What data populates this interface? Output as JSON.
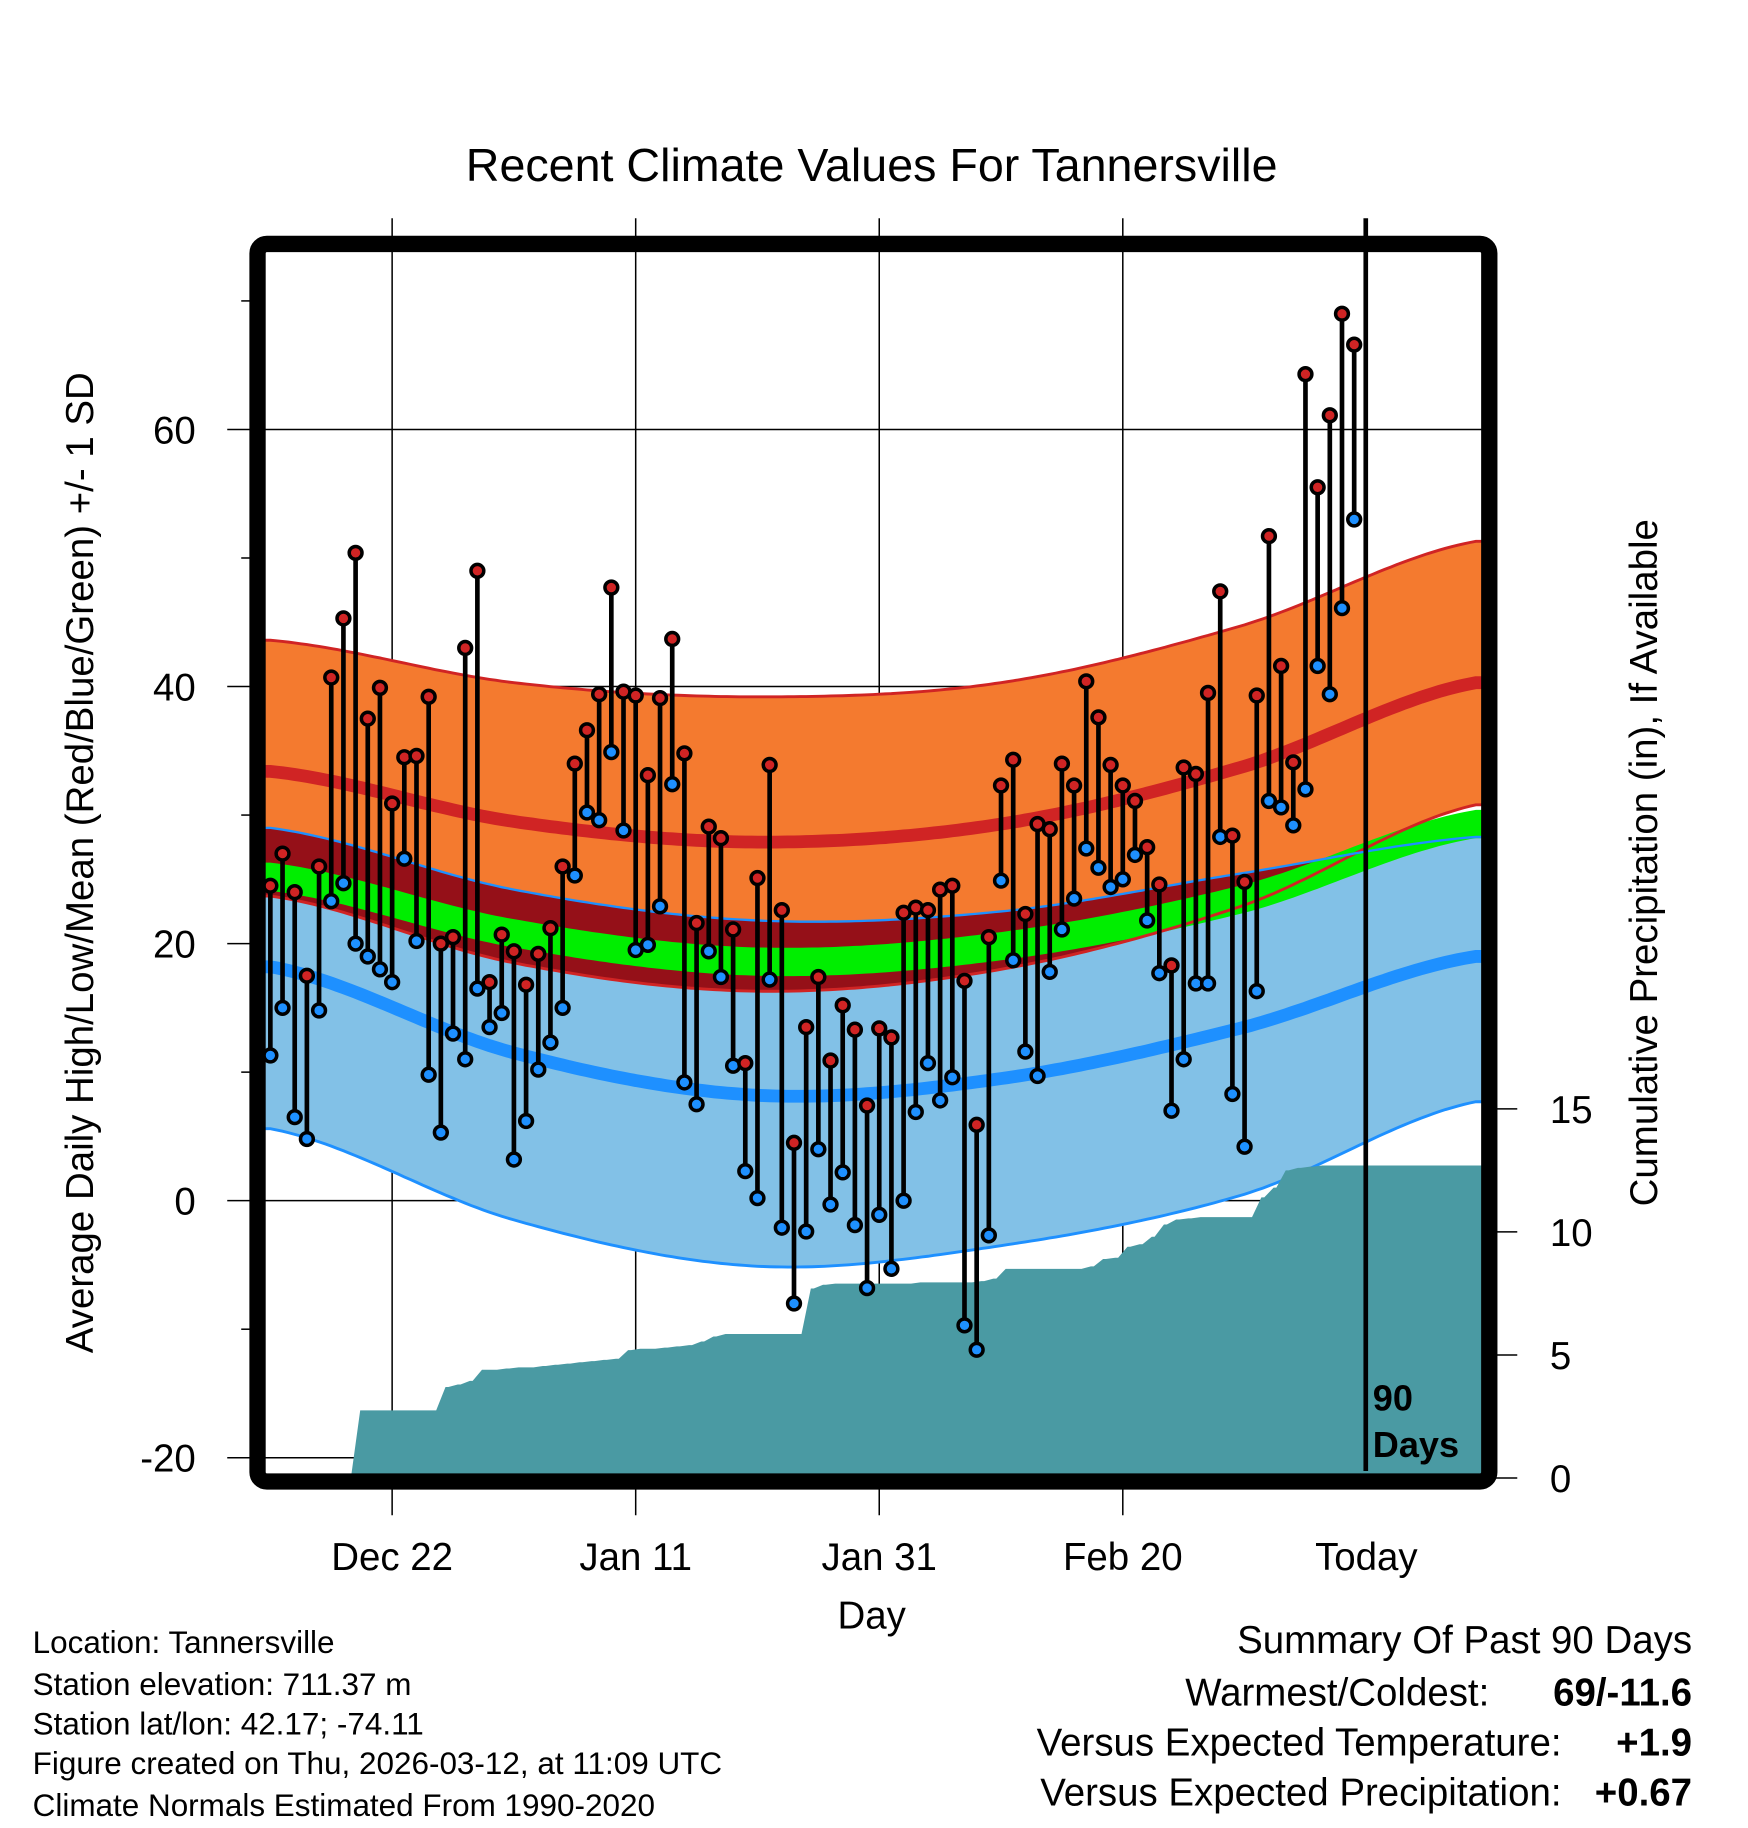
{
  "chart_data": {
    "type": "line",
    "title": "Recent Climate Values For Tannersville",
    "xlabel": "Day",
    "ylabel": "Average Daily High/Low/Mean (Red/Blue/Green) +/- 1 SD",
    "y2label": "Cumulative Precipitation (in), If Available",
    "ylim": [
      -21,
      75
    ],
    "y2lim": [
      0,
      50
    ],
    "x_ticks": [
      {
        "day": 10,
        "label": "Dec 22"
      },
      {
        "day": 30,
        "label": "Jan 11"
      },
      {
        "day": 50,
        "label": "Jan 31"
      },
      {
        "day": 70,
        "label": "Feb 20"
      },
      {
        "day": 90,
        "label": "Today"
      }
    ],
    "y_ticks": [
      {
        "value": 60,
        "label": "60"
      },
      {
        "value": 40,
        "label": "40"
      },
      {
        "value": 20,
        "label": "20"
      },
      {
        "value": 0,
        "label": "0"
      },
      {
        "value": -20,
        "label": "-20"
      }
    ],
    "y_minor_ticks": [
      70,
      50,
      30,
      10,
      -10
    ],
    "y2_ticks": [
      {
        "value": 15,
        "label": "15"
      },
      {
        "value": 10,
        "label": "10"
      },
      {
        "value": 5,
        "label": "5"
      },
      {
        "value": 0,
        "label": "0"
      }
    ],
    "today_marker": {
      "day": 90,
      "label_line1": "90",
      "label_line2": "Days"
    },
    "daily_high": [
      24.5,
      27,
      24,
      17.5,
      26,
      40.7,
      45.3,
      50.4,
      37.5,
      39.9,
      30.9,
      34.5,
      34.6,
      39.2,
      20,
      20.5,
      43,
      49,
      17,
      20.7,
      19.4,
      16.8,
      19.2,
      21.2,
      26,
      34,
      36.6,
      39.4,
      47.7,
      39.6,
      39.3,
      33.1,
      39.1,
      43.7,
      34.8,
      21.6,
      29.1,
      28.2,
      21.1,
      10.7,
      25.1,
      33.9,
      22.6,
      4.5,
      13.5,
      17.4,
      10.9,
      15.2,
      13.3,
      7.4,
      13.4,
      12.7,
      22.4,
      22.8,
      22.6,
      24.2,
      24.5,
      17.1,
      5.9,
      20.5,
      32.3,
      34.3,
      22.3,
      29.3,
      28.9,
      34,
      32.3,
      40.4,
      37.6,
      33.9,
      32.3,
      31.1,
      27.5,
      24.6,
      18.3,
      33.7,
      33.2,
      39.5,
      47.4,
      28.4,
      24.8,
      39.3,
      51.7,
      41.6,
      34.1,
      64.3,
      55.5,
      61.1,
      69,
      66.6
    ],
    "daily_low": [
      11.3,
      15,
      6.5,
      4.8,
      14.8,
      23.3,
      24.7,
      20,
      19,
      18,
      17,
      26.6,
      20.2,
      9.8,
      5.3,
      13,
      11,
      16.5,
      13.5,
      14.6,
      3.2,
      6.2,
      10.2,
      12.3,
      15,
      25.3,
      30.2,
      29.6,
      34.9,
      28.8,
      19.5,
      19.9,
      22.9,
      32.4,
      9.2,
      7.5,
      19.4,
      17.4,
      10.5,
      2.3,
      0.2,
      17.2,
      -2.1,
      -8,
      -2.4,
      4,
      -0.3,
      2.2,
      -1.9,
      -6.8,
      -1.1,
      -5.3,
      0,
      6.9,
      10.7,
      7.8,
      9.6,
      -9.7,
      -11.6,
      -2.7,
      24.9,
      18.7,
      11.6,
      9.7,
      17.8,
      21.1,
      23.5,
      27.4,
      25.9,
      24.4,
      25,
      26.9,
      21.8,
      17.7,
      7,
      11,
      16.9,
      16.9,
      28.3,
      8.3,
      4.2,
      16.3,
      31.1,
      30.6,
      29.2,
      32,
      41.6,
      39.4,
      46.1,
      53
    ],
    "cumulative_precip": [
      0,
      0,
      0,
      0,
      0,
      0,
      0,
      2.75,
      2.75,
      2.75,
      2.75,
      2.75,
      2.75,
      2.75,
      3.7,
      3.8,
      3.95,
      4.4,
      4.4,
      4.45,
      4.5,
      4.5,
      4.55,
      4.6,
      4.65,
      4.7,
      4.75,
      4.8,
      4.85,
      5.2,
      5.25,
      5.25,
      5.3,
      5.35,
      5.4,
      5.55,
      5.75,
      5.85,
      5.85,
      5.85,
      5.85,
      5.85,
      5.85,
      5.85,
      7.7,
      7.85,
      7.9,
      7.9,
      7.9,
      7.9,
      7.9,
      7.9,
      7.9,
      7.95,
      7.95,
      7.95,
      7.95,
      7.95,
      8.0,
      8.1,
      8.5,
      8.5,
      8.5,
      8.5,
      8.5,
      8.5,
      8.5,
      8.6,
      8.9,
      8.95,
      9.4,
      9.5,
      9.8,
      10.3,
      10.5,
      10.55,
      10.6,
      10.6,
      10.6,
      10.6,
      10.6,
      11.4,
      11.8,
      12.5,
      12.6,
      12.65,
      12.7,
      12.7,
      12.7,
      12.7
    ],
    "climatology": {
      "days": [
        0,
        20,
        40,
        60,
        80,
        99
      ],
      "high_plus_sd": [
        43.6,
        40.3,
        39.2,
        40.3,
        44.8,
        51.3
      ],
      "high_mean": [
        33.4,
        29.5,
        27.9,
        29.3,
        33.8,
        40.3
      ],
      "high_minus_sd": [
        23.7,
        18.5,
        16.3,
        18.0,
        23.0,
        30.8
      ],
      "mean": [
        25.2,
        20.8,
        18.6,
        19.8,
        23.5,
        29.3
      ],
      "low_plus_sd": [
        29.0,
        24.2,
        21.8,
        22.5,
        25.5,
        28.3
      ],
      "low_mean": [
        18.2,
        11.5,
        8.2,
        9.5,
        13.5,
        19.0
      ],
      "low_minus_sd": [
        5.6,
        -1.5,
        -5.1,
        -3.5,
        0.5,
        7.7
      ]
    },
    "colors": {
      "high_band": "#f47a2f",
      "high_line": "#d02424",
      "overlap": "#951018",
      "mean_band": "#00ee00",
      "low_band": "#82c1e7",
      "low_line": "#1e90ff",
      "precip": "#4a9aa3",
      "high_marker": "#d02424",
      "low_marker": "#1e90ff"
    }
  },
  "info": {
    "location": "Location: Tannersville",
    "elevation": "Station elevation: 711.37 m",
    "latlon": "Station lat/lon: 42.17; -74.11",
    "created": "Figure created on Thu, 2026-03-12, at 11:09 UTC",
    "normals": "Climate Normals Estimated From 1990-2020"
  },
  "summary": {
    "title": "Summary Of Past 90 Days",
    "warmest_coldest_label": "Warmest/Coldest:",
    "warmest_coldest_value": "69/-11.6",
    "temp_label": "Versus Expected Temperature:",
    "temp_value": "+1.9",
    "temp_color": "#d02424",
    "precip_label": "Versus Expected Precipitation:",
    "precip_value": "+0.67",
    "precip_color": "#22dd22"
  }
}
